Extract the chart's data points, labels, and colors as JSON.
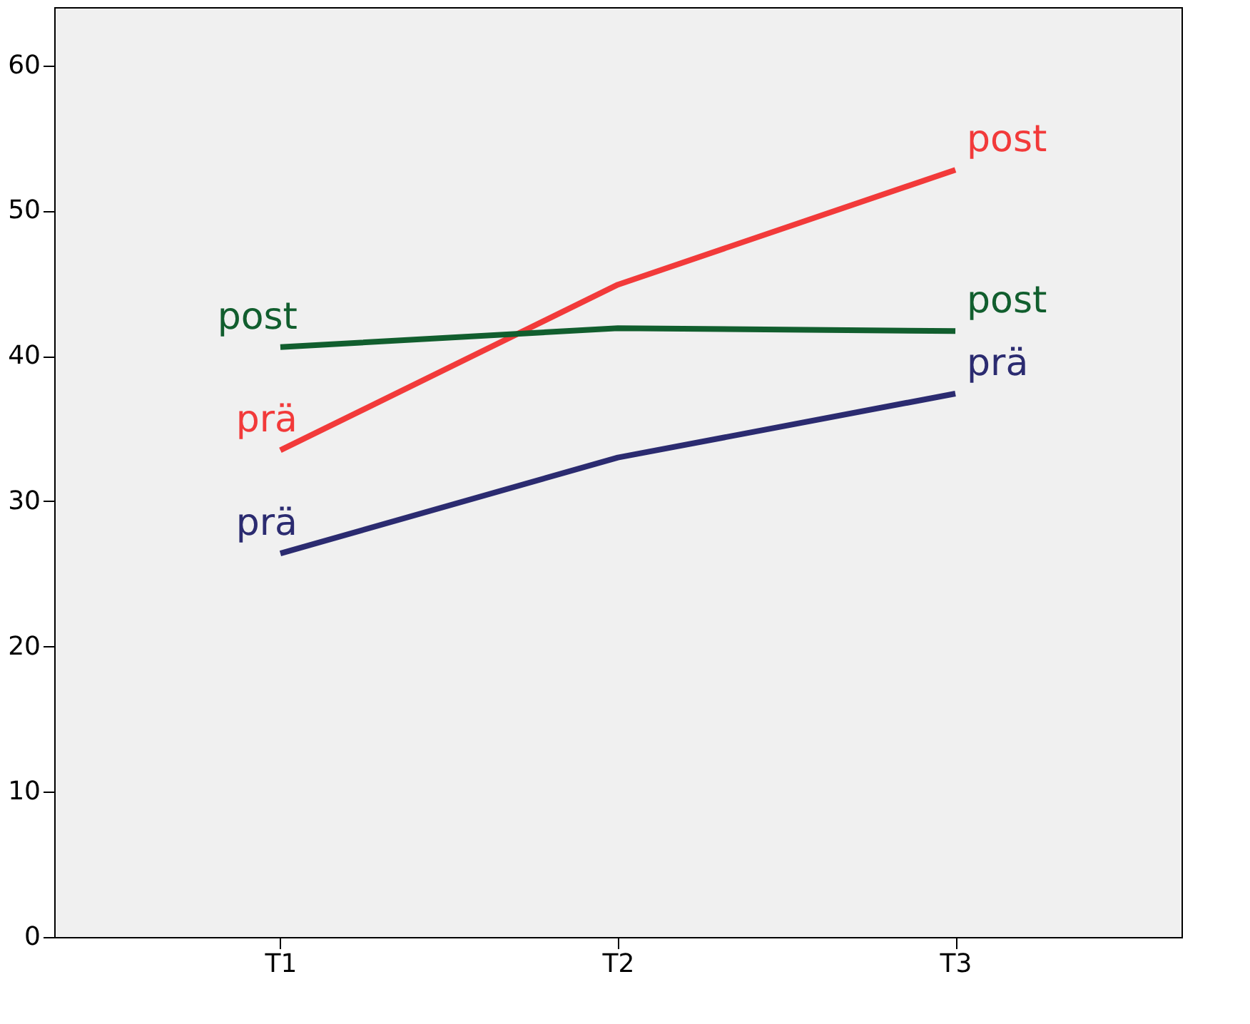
{
  "chart_data": {
    "type": "line",
    "categories": [
      "T1",
      "T2",
      "T3"
    ],
    "series": [
      {
        "color": "#f23a3a",
        "values": [
          33.5,
          44.9,
          52.8
        ]
      },
      {
        "color": "#115e2e",
        "values": [
          40.6,
          41.9,
          41.7
        ]
      },
      {
        "color": "#2b2b70",
        "values": [
          26.4,
          33.0,
          37.4
        ]
      }
    ],
    "annotations": [
      {
        "text": "post",
        "x": "T1",
        "y": 40.6
      },
      {
        "text": "prä",
        "x": "T1",
        "y": 33.5
      },
      {
        "text": "prä",
        "x": "T1",
        "y": 26.4
      },
      {
        "text": "post",
        "x": "T3",
        "y": 52.8
      },
      {
        "text": "post",
        "x": "T3",
        "y": 41.7
      },
      {
        "text": "prä",
        "x": "T3",
        "y": 37.4
      }
    ],
    "ylim": [
      0,
      64
    ],
    "yticks": [
      0,
      10,
      20,
      30,
      40,
      50,
      60
    ],
    "grid": false,
    "legend": false,
    "line_style": "solid",
    "marker": "none"
  }
}
